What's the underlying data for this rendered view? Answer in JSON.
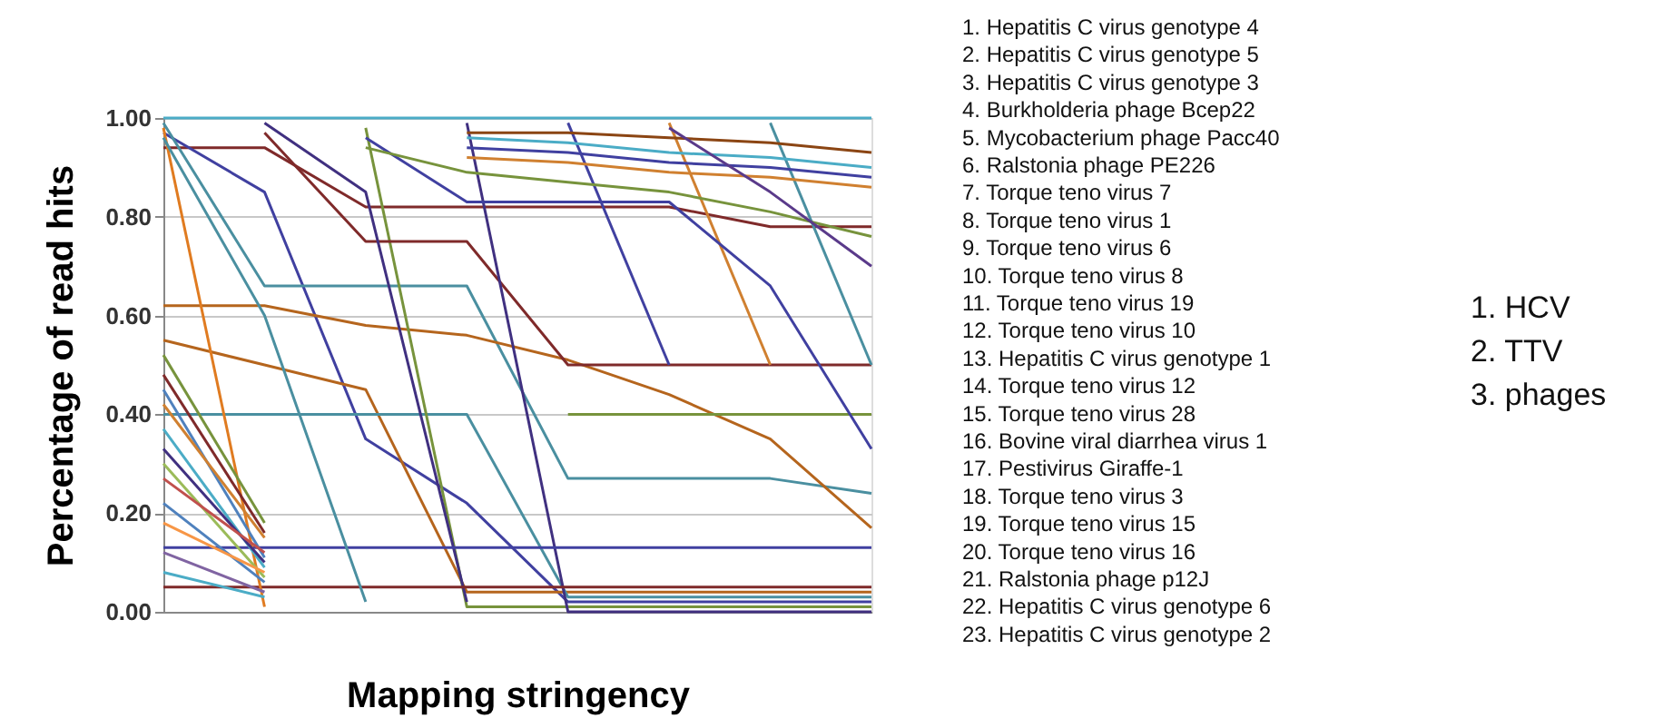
{
  "chart_data": {
    "type": "line",
    "xlabel": "Mapping stringency",
    "ylabel": "Percentage of read hits",
    "categories": [
      null,
      null,
      null,
      null,
      null,
      null,
      null,
      null
    ],
    "ylim": [
      0,
      1
    ],
    "yticks": [
      {
        "value": 0,
        "label": "0.00"
      },
      {
        "value": 0.2,
        "label": "0.20"
      },
      {
        "value": 0.4,
        "label": "0.40"
      },
      {
        "value": 0.6,
        "label": "0.60"
      },
      {
        "value": 0.8,
        "label": "0.80"
      },
      {
        "value": 1,
        "label": "1.00"
      }
    ],
    "grid": "y",
    "legend": false,
    "marker": "none",
    "line_style": "solid",
    "series": [
      {
        "color": "#4bacc6",
        "values": [
          1,
          1,
          1,
          1,
          1,
          1,
          1,
          1
        ]
      },
      {
        "color": "#7f2a2a",
        "values": [
          0.94,
          0.94,
          0.82,
          0.82,
          0.82,
          0.82,
          0.78,
          0.78
        ]
      },
      {
        "color": "#4040a0",
        "values": [
          0.97,
          0.85,
          0.35,
          0.22,
          0.02,
          0.02,
          0.02,
          0.02
        ]
      },
      {
        "color": "#4a8fa0",
        "values": [
          0.99,
          0.66,
          0.66,
          0.66,
          0.27,
          0.27,
          0.27,
          0.24
        ]
      },
      {
        "color": "#b5651d",
        "values": [
          0.62,
          0.62,
          0.58,
          0.56,
          0.51,
          0.44,
          0.35,
          0.17
        ]
      },
      {
        "color": "#b5651d",
        "values": [
          0.55,
          0.5,
          0.45,
          0.04,
          0.04,
          0.04,
          0.04,
          0.04
        ]
      },
      {
        "color": "#4a8fa0",
        "values": [
          0.4,
          0.4,
          0.4,
          0.4,
          0.03,
          0.03,
          0.03,
          0.03
        ]
      },
      {
        "color": "#77933c",
        "values": [
          null,
          null,
          null,
          null,
          0.4,
          0.4,
          0.4,
          0.4
        ]
      },
      {
        "color": "#77933c",
        "values": [
          null,
          null,
          0.98,
          0.01,
          0.01,
          0.01,
          0.01,
          0.01
        ]
      },
      {
        "color": "#7f2a2a",
        "values": [
          null,
          0.97,
          0.75,
          0.75,
          0.5,
          0.5,
          0.5,
          0.5
        ]
      },
      {
        "color": "#403080",
        "values": [
          null,
          0.99,
          0.85,
          0.02,
          null,
          null,
          null,
          null
        ]
      },
      {
        "color": "#403080",
        "values": [
          null,
          null,
          null,
          0.99,
          0,
          0,
          0,
          0
        ]
      },
      {
        "color": "#4040a0",
        "values": [
          null,
          null,
          null,
          null,
          0.99,
          0.5,
          null,
          null
        ]
      },
      {
        "color": "#d08030",
        "values": [
          null,
          null,
          null,
          null,
          null,
          0.99,
          0.5,
          null
        ]
      },
      {
        "color": "#4a8fa0",
        "values": [
          null,
          null,
          null,
          null,
          null,
          null,
          0.99,
          0.5
        ]
      },
      {
        "color": "#4040a0",
        "values": [
          null,
          null,
          0.96,
          0.83,
          0.83,
          0.83,
          0.66,
          0.33
        ]
      },
      {
        "color": "#77933c",
        "values": [
          null,
          null,
          0.94,
          0.89,
          0.87,
          0.85,
          0.81,
          0.76
        ]
      },
      {
        "color": "#4040a0",
        "values": [
          0.13,
          0.13,
          0.13,
          0.13,
          0.13,
          0.13,
          0.13,
          0.13
        ]
      },
      {
        "color": "#7f2a2a",
        "values": [
          0.05,
          0.05,
          0.05,
          0.05,
          0.05,
          0.05,
          0.05,
          0.05
        ]
      },
      {
        "color": "#8b4513",
        "values": [
          null,
          null,
          null,
          0.97,
          0.97,
          0.96,
          0.95,
          0.93
        ]
      },
      {
        "color": "#4040a0",
        "values": [
          null,
          null,
          null,
          0.94,
          0.93,
          0.91,
          0.9,
          0.88
        ]
      },
      {
        "color": "#4bacc6",
        "values": [
          null,
          null,
          null,
          0.96,
          0.95,
          0.93,
          0.92,
          0.9
        ]
      },
      {
        "color": "#d08030",
        "values": [
          null,
          null,
          null,
          0.92,
          0.91,
          0.89,
          0.88,
          0.86
        ]
      },
      {
        "color": "#5a3a8a",
        "values": [
          null,
          null,
          null,
          null,
          null,
          0.98,
          0.85,
          0.7
        ]
      },
      {
        "color": "#e07b20",
        "values": [
          0.98,
          0.01,
          null,
          null,
          null,
          null,
          null,
          null
        ]
      },
      {
        "color": "#4a8fa0",
        "values": [
          0.96,
          0.6,
          0.02,
          null,
          null,
          null,
          null,
          null
        ]
      },
      {
        "color": "#77933c",
        "values": [
          0.52,
          0.18,
          null,
          null,
          null,
          null,
          null,
          null
        ]
      },
      {
        "color": "#7f2a2a",
        "values": [
          0.48,
          0.16,
          null,
          null,
          null,
          null,
          null,
          null
        ]
      },
      {
        "color": "#4f81bd",
        "values": [
          0.45,
          0.11,
          null,
          null,
          null,
          null,
          null,
          null
        ]
      },
      {
        "color": "#d08030",
        "values": [
          0.42,
          0.15,
          null,
          null,
          null,
          null,
          null,
          null
        ]
      },
      {
        "color": "#4bacc6",
        "values": [
          0.37,
          0.09,
          null,
          null,
          null,
          null,
          null,
          null
        ]
      },
      {
        "color": "#403080",
        "values": [
          0.33,
          0.1,
          null,
          null,
          null,
          null,
          null,
          null
        ]
      },
      {
        "color": "#9bbb59",
        "values": [
          0.3,
          0.07,
          null,
          null,
          null,
          null,
          null,
          null
        ]
      },
      {
        "color": "#c0504d",
        "values": [
          0.27,
          0.12,
          null,
          null,
          null,
          null,
          null,
          null
        ]
      },
      {
        "color": "#4f81bd",
        "values": [
          0.22,
          0.06,
          null,
          null,
          null,
          null,
          null,
          null
        ]
      },
      {
        "color": "#f79646",
        "values": [
          0.18,
          0.08,
          null,
          null,
          null,
          null,
          null,
          null
        ]
      },
      {
        "color": "#8064a2",
        "values": [
          0.12,
          0.04,
          null,
          null,
          null,
          null,
          null,
          null
        ]
      },
      {
        "color": "#4bacc6",
        "values": [
          0.08,
          0.03,
          null,
          null,
          null,
          null,
          null,
          null
        ]
      }
    ],
    "annotations": [
      "1. Hepatitis C virus genotype 4",
      "2. Hepatitis C virus genotype 5",
      "3. Hepatitis C virus genotype 3",
      "4. Burkholderia phage Bcep22",
      "5. Mycobacterium phage Pacc40",
      "6. Ralstonia phage PE226",
      "7. Torque teno virus 7",
      "8. Torque teno virus 1",
      "9. Torque teno virus 6",
      "10. Torque teno virus 8",
      "11. Torque teno virus 19",
      "12. Torque teno virus 10",
      "13. Hepatitis C virus genotype 1",
      "14. Torque teno virus 12",
      "15. Torque teno virus 28",
      "16. Bovine viral diarrhea virus 1",
      "17. Pestivirus Giraffe-1",
      "18. Torque teno virus 3",
      "19. Torque teno virus 15",
      "20. Torque teno virus 16",
      "21. Ralstonia phage p12J",
      "22. Hepatitis C virus genotype 6",
      "23. Hepatitis C virus genotype 2",
      "1. HCV",
      "2. TTV",
      "3. phages"
    ]
  }
}
